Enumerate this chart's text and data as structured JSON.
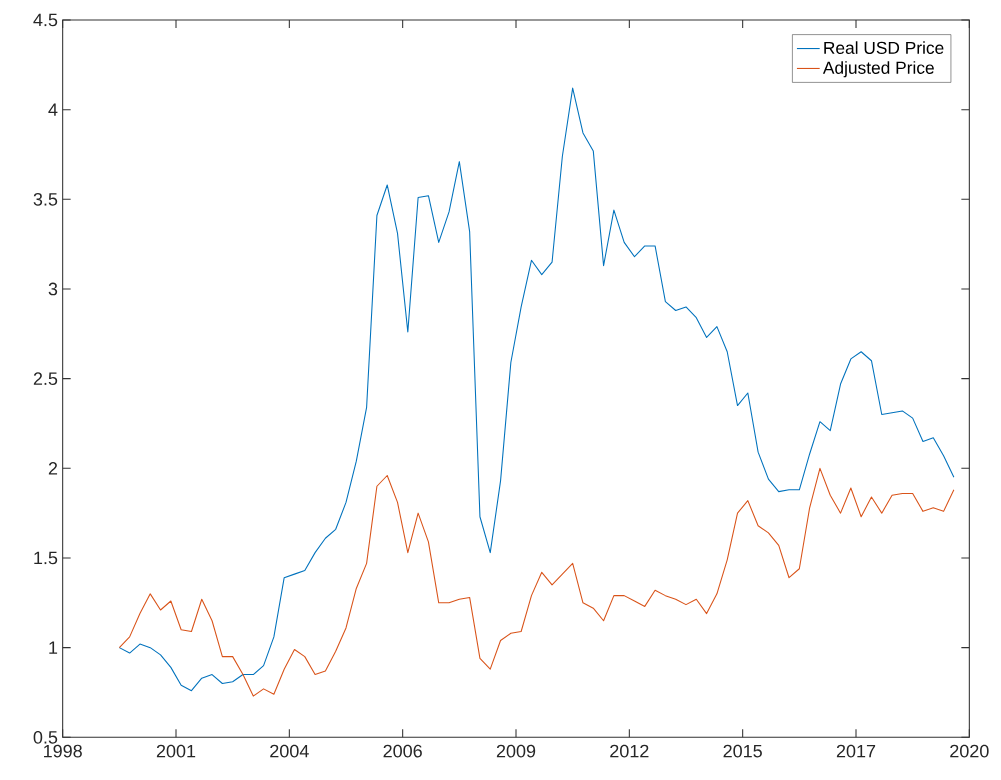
{
  "chart_data": {
    "type": "line",
    "x": [
      1999.375,
      1999.625,
      1999.875,
      2000.125,
      2000.375,
      2000.625,
      2000.875,
      2001.125,
      2001.375,
      2001.625,
      2001.875,
      2002.125,
      2002.375,
      2002.625,
      2002.875,
      2003.125,
      2003.375,
      2003.625,
      2003.875,
      2004.125,
      2004.375,
      2004.625,
      2004.875,
      2005.125,
      2005.375,
      2005.625,
      2005.875,
      2006.125,
      2006.375,
      2006.625,
      2006.875,
      2007.125,
      2007.375,
      2007.625,
      2007.875,
      2008.125,
      2008.375,
      2008.625,
      2008.875,
      2009.125,
      2009.375,
      2009.625,
      2009.875,
      2010.125,
      2010.375,
      2010.625,
      2010.875,
      2011.125,
      2011.375,
      2011.625,
      2011.875,
      2012.125,
      2012.375,
      2012.625,
      2012.875,
      2013.125,
      2013.375,
      2013.625,
      2013.875,
      2014.125,
      2014.375,
      2014.625,
      2014.875,
      2015.125,
      2015.375,
      2015.625,
      2015.875,
      2016.125,
      2016.375,
      2016.625,
      2016.875,
      2017.125,
      2017.375,
      2017.625,
      2017.875,
      2018.125,
      2018.375,
      2018.625,
      2018.875,
      2019.125,
      2019.375,
      2019.625
    ],
    "series": [
      {
        "name": "Real USD Price",
        "color": "#0072bd",
        "values": [
          1.0,
          0.97,
          1.02,
          1.0,
          0.96,
          0.89,
          0.79,
          0.76,
          0.83,
          0.85,
          0.8,
          0.81,
          0.85,
          0.85,
          0.9,
          1.06,
          1.39,
          1.41,
          1.43,
          1.53,
          1.61,
          1.66,
          1.81,
          2.04,
          2.34,
          3.41,
          3.58,
          3.31,
          2.76,
          3.51,
          3.52,
          3.26,
          3.43,
          3.71,
          3.32,
          1.73,
          1.53,
          1.93,
          2.59,
          2.9,
          3.16,
          3.08,
          3.15,
          3.74,
          4.12,
          3.87,
          3.77,
          3.13,
          3.44,
          3.26,
          3.18,
          3.24,
          3.24,
          2.93,
          2.88,
          2.9,
          2.84,
          2.73,
          2.79,
          2.65,
          2.35,
          2.42,
          2.09,
          1.94,
          1.87,
          1.88,
          1.88,
          2.08,
          2.26,
          2.21,
          2.47,
          2.61,
          2.65,
          2.6,
          2.3,
          2.31,
          2.32,
          2.28,
          2.15,
          2.17,
          2.07,
          1.95
        ]
      },
      {
        "name": "Adjusted Price",
        "color": "#d95319",
        "values": [
          1.0,
          1.06,
          1.19,
          1.3,
          1.21,
          1.26,
          1.1,
          1.09,
          1.27,
          1.15,
          0.95,
          0.95,
          0.85,
          0.73,
          0.77,
          0.74,
          0.88,
          0.99,
          0.95,
          0.85,
          0.87,
          0.98,
          1.11,
          1.33,
          1.47,
          1.9,
          1.96,
          1.81,
          1.53,
          1.75,
          1.59,
          1.25,
          1.25,
          1.27,
          1.28,
          0.94,
          0.88,
          1.04,
          1.08,
          1.09,
          1.29,
          1.42,
          1.35,
          1.41,
          1.47,
          1.25,
          1.22,
          1.15,
          1.29,
          1.29,
          1.26,
          1.23,
          1.32,
          1.29,
          1.27,
          1.24,
          1.27,
          1.19,
          1.3,
          1.49,
          1.75,
          1.82,
          1.68,
          1.64,
          1.57,
          1.39,
          1.44,
          1.78,
          2.0,
          1.85,
          1.75,
          1.89,
          1.73,
          1.84,
          1.75,
          1.85,
          1.86,
          1.86,
          1.76,
          1.78,
          1.76,
          1.88
        ]
      }
    ],
    "xlim": [
      1998,
      2020
    ],
    "xticks": [
      {
        "value": 1998,
        "label": "1998"
      },
      {
        "value": 2000.75,
        "label": "2001"
      },
      {
        "value": 2003.5,
        "label": "2004"
      },
      {
        "value": 2006.25,
        "label": "2006"
      },
      {
        "value": 2009,
        "label": "2009"
      },
      {
        "value": 2011.75,
        "label": "2012"
      },
      {
        "value": 2014.5,
        "label": "2015"
      },
      {
        "value": 2017.25,
        "label": "2017"
      },
      {
        "value": 2020,
        "label": "2020"
      }
    ],
    "ylim": [
      0.5,
      4.5
    ],
    "yticks": [
      0.5,
      1,
      1.5,
      2,
      2.5,
      3,
      3.5,
      4,
      4.5
    ],
    "legend": "top right",
    "marker": "none",
    "line_style": "solid"
  }
}
